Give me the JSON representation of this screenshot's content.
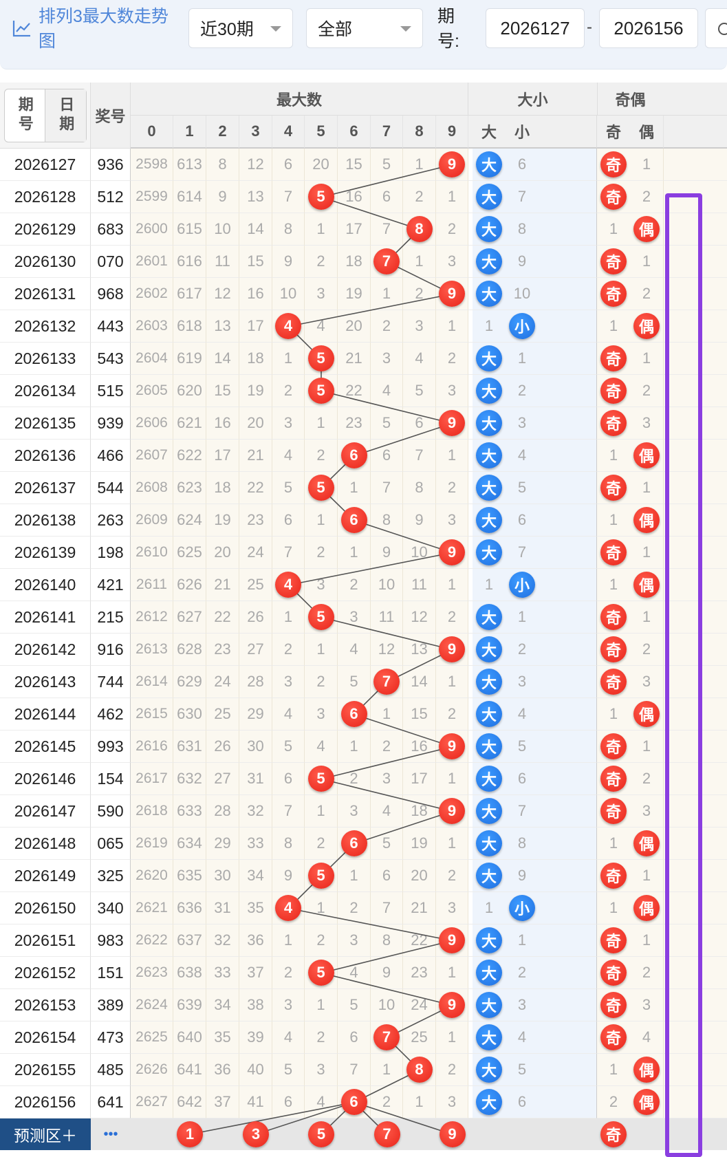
{
  "header": {
    "title": "排列3最大数走势图",
    "range_select": "近30期",
    "type_select": "全部",
    "period_label": "期号:",
    "period_from": "2026127",
    "period_to": "2026156",
    "dash": "-"
  },
  "table": {
    "col_period_label": "期号",
    "col_date_label": "日期",
    "col_award_label": "奖号",
    "group_max": "最大数",
    "group_size": "大小",
    "group_parity": "奇偶",
    "digit_headers": [
      "0",
      "1",
      "2",
      "3",
      "4",
      "5",
      "6",
      "7",
      "8",
      "9"
    ],
    "size_headers": [
      "大",
      "小"
    ],
    "parity_headers": [
      "奇",
      "偶"
    ],
    "rows": [
      {
        "p": "2026127",
        "a": "936",
        "d": [
          "2598",
          "613",
          "8",
          "12",
          "6",
          "20",
          "15",
          "5",
          "1",
          "9"
        ],
        "hit": 9,
        "s": [
          "大",
          "6"
        ],
        "sh": 0,
        "o": [
          "奇",
          "1"
        ],
        "oh": 0
      },
      {
        "p": "2026128",
        "a": "512",
        "d": [
          "2599",
          "614",
          "9",
          "13",
          "7",
          "5",
          "16",
          "6",
          "2",
          "1"
        ],
        "hit": 5,
        "s": [
          "大",
          "7"
        ],
        "sh": 0,
        "o": [
          "奇",
          "2"
        ],
        "oh": 0
      },
      {
        "p": "2026129",
        "a": "683",
        "d": [
          "2600",
          "615",
          "10",
          "14",
          "8",
          "1",
          "17",
          "7",
          "8",
          "2"
        ],
        "hit": 8,
        "s": [
          "大",
          "8"
        ],
        "sh": 0,
        "o": [
          "1",
          "偶"
        ],
        "oh": 1
      },
      {
        "p": "2026130",
        "a": "070",
        "d": [
          "2601",
          "616",
          "11",
          "15",
          "9",
          "2",
          "18",
          "7",
          "1",
          "3"
        ],
        "hit": 7,
        "s": [
          "大",
          "9"
        ],
        "sh": 0,
        "o": [
          "奇",
          "1"
        ],
        "oh": 0
      },
      {
        "p": "2026131",
        "a": "968",
        "d": [
          "2602",
          "617",
          "12",
          "16",
          "10",
          "3",
          "19",
          "1",
          "2",
          "9"
        ],
        "hit": 9,
        "s": [
          "大",
          "10"
        ],
        "sh": 0,
        "o": [
          "奇",
          "2"
        ],
        "oh": 0
      },
      {
        "p": "2026132",
        "a": "443",
        "d": [
          "2603",
          "618",
          "13",
          "17",
          "4",
          "4",
          "20",
          "2",
          "3",
          "1"
        ],
        "hit": 4,
        "s": [
          "1",
          "小"
        ],
        "sh": 1,
        "o": [
          "1",
          "偶"
        ],
        "oh": 1
      },
      {
        "p": "2026133",
        "a": "543",
        "d": [
          "2604",
          "619",
          "14",
          "18",
          "1",
          "5",
          "21",
          "3",
          "4",
          "2"
        ],
        "hit": 5,
        "s": [
          "大",
          "1"
        ],
        "sh": 0,
        "o": [
          "奇",
          "1"
        ],
        "oh": 0
      },
      {
        "p": "2026134",
        "a": "515",
        "d": [
          "2605",
          "620",
          "15",
          "19",
          "2",
          "5",
          "22",
          "4",
          "5",
          "3"
        ],
        "hit": 5,
        "s": [
          "大",
          "2"
        ],
        "sh": 0,
        "o": [
          "奇",
          "2"
        ],
        "oh": 0
      },
      {
        "p": "2026135",
        "a": "939",
        "d": [
          "2606",
          "621",
          "16",
          "20",
          "3",
          "1",
          "23",
          "5",
          "6",
          "9"
        ],
        "hit": 9,
        "s": [
          "大",
          "3"
        ],
        "sh": 0,
        "o": [
          "奇",
          "3"
        ],
        "oh": 0
      },
      {
        "p": "2026136",
        "a": "466",
        "d": [
          "2607",
          "622",
          "17",
          "21",
          "4",
          "2",
          "6",
          "6",
          "7",
          "1"
        ],
        "hit": 6,
        "s": [
          "大",
          "4"
        ],
        "sh": 0,
        "o": [
          "1",
          "偶"
        ],
        "oh": 1
      },
      {
        "p": "2026137",
        "a": "544",
        "d": [
          "2608",
          "623",
          "18",
          "22",
          "5",
          "5",
          "1",
          "7",
          "8",
          "2"
        ],
        "hit": 5,
        "s": [
          "大",
          "5"
        ],
        "sh": 0,
        "o": [
          "奇",
          "1"
        ],
        "oh": 0
      },
      {
        "p": "2026138",
        "a": "263",
        "d": [
          "2609",
          "624",
          "19",
          "23",
          "6",
          "1",
          "6",
          "8",
          "9",
          "3"
        ],
        "hit": 6,
        "s": [
          "大",
          "6"
        ],
        "sh": 0,
        "o": [
          "1",
          "偶"
        ],
        "oh": 1
      },
      {
        "p": "2026139",
        "a": "198",
        "d": [
          "2610",
          "625",
          "20",
          "24",
          "7",
          "2",
          "1",
          "9",
          "10",
          "9"
        ],
        "hit": 9,
        "s": [
          "大",
          "7"
        ],
        "sh": 0,
        "o": [
          "奇",
          "1"
        ],
        "oh": 0
      },
      {
        "p": "2026140",
        "a": "421",
        "d": [
          "2611",
          "626",
          "21",
          "25",
          "4",
          "3",
          "2",
          "10",
          "11",
          "1"
        ],
        "hit": 4,
        "s": [
          "1",
          "小"
        ],
        "sh": 1,
        "o": [
          "1",
          "偶"
        ],
        "oh": 1
      },
      {
        "p": "2026141",
        "a": "215",
        "d": [
          "2612",
          "627",
          "22",
          "26",
          "1",
          "5",
          "3",
          "11",
          "12",
          "2"
        ],
        "hit": 5,
        "s": [
          "大",
          "1"
        ],
        "sh": 0,
        "o": [
          "奇",
          "1"
        ],
        "oh": 0
      },
      {
        "p": "2026142",
        "a": "916",
        "d": [
          "2613",
          "628",
          "23",
          "27",
          "2",
          "1",
          "4",
          "12",
          "13",
          "9"
        ],
        "hit": 9,
        "s": [
          "大",
          "2"
        ],
        "sh": 0,
        "o": [
          "奇",
          "2"
        ],
        "oh": 0
      },
      {
        "p": "2026143",
        "a": "744",
        "d": [
          "2614",
          "629",
          "24",
          "28",
          "3",
          "2",
          "5",
          "7",
          "14",
          "1"
        ],
        "hit": 7,
        "s": [
          "大",
          "3"
        ],
        "sh": 0,
        "o": [
          "奇",
          "3"
        ],
        "oh": 0
      },
      {
        "p": "2026144",
        "a": "462",
        "d": [
          "2615",
          "630",
          "25",
          "29",
          "4",
          "3",
          "6",
          "1",
          "15",
          "2"
        ],
        "hit": 6,
        "s": [
          "大",
          "4"
        ],
        "sh": 0,
        "o": [
          "1",
          "偶"
        ],
        "oh": 1
      },
      {
        "p": "2026145",
        "a": "993",
        "d": [
          "2616",
          "631",
          "26",
          "30",
          "5",
          "4",
          "1",
          "2",
          "16",
          "9"
        ],
        "hit": 9,
        "s": [
          "大",
          "5"
        ],
        "sh": 0,
        "o": [
          "奇",
          "1"
        ],
        "oh": 0
      },
      {
        "p": "2026146",
        "a": "154",
        "d": [
          "2617",
          "632",
          "27",
          "31",
          "6",
          "5",
          "2",
          "3",
          "17",
          "1"
        ],
        "hit": 5,
        "s": [
          "大",
          "6"
        ],
        "sh": 0,
        "o": [
          "奇",
          "2"
        ],
        "oh": 0
      },
      {
        "p": "2026147",
        "a": "590",
        "d": [
          "2618",
          "633",
          "28",
          "32",
          "7",
          "1",
          "3",
          "4",
          "18",
          "9"
        ],
        "hit": 9,
        "s": [
          "大",
          "7"
        ],
        "sh": 0,
        "o": [
          "奇",
          "3"
        ],
        "oh": 0
      },
      {
        "p": "2026148",
        "a": "065",
        "d": [
          "2619",
          "634",
          "29",
          "33",
          "8",
          "2",
          "6",
          "5",
          "19",
          "1"
        ],
        "hit": 6,
        "s": [
          "大",
          "8"
        ],
        "sh": 0,
        "o": [
          "1",
          "偶"
        ],
        "oh": 1
      },
      {
        "p": "2026149",
        "a": "325",
        "d": [
          "2620",
          "635",
          "30",
          "34",
          "9",
          "5",
          "1",
          "6",
          "20",
          "2"
        ],
        "hit": 5,
        "s": [
          "大",
          "9"
        ],
        "sh": 0,
        "o": [
          "奇",
          "1"
        ],
        "oh": 0
      },
      {
        "p": "2026150",
        "a": "340",
        "d": [
          "2621",
          "636",
          "31",
          "35",
          "4",
          "1",
          "2",
          "7",
          "21",
          "3"
        ],
        "hit": 4,
        "s": [
          "1",
          "小"
        ],
        "sh": 1,
        "o": [
          "1",
          "偶"
        ],
        "oh": 1
      },
      {
        "p": "2026151",
        "a": "983",
        "d": [
          "2622",
          "637",
          "32",
          "36",
          "1",
          "2",
          "3",
          "8",
          "22",
          "9"
        ],
        "hit": 9,
        "s": [
          "大",
          "1"
        ],
        "sh": 0,
        "o": [
          "奇",
          "1"
        ],
        "oh": 0
      },
      {
        "p": "2026152",
        "a": "151",
        "d": [
          "2623",
          "638",
          "33",
          "37",
          "2",
          "5",
          "4",
          "9",
          "23",
          "1"
        ],
        "hit": 5,
        "s": [
          "大",
          "2"
        ],
        "sh": 0,
        "o": [
          "奇",
          "2"
        ],
        "oh": 0
      },
      {
        "p": "2026153",
        "a": "389",
        "d": [
          "2624",
          "639",
          "34",
          "38",
          "3",
          "1",
          "5",
          "10",
          "24",
          "9"
        ],
        "hit": 9,
        "s": [
          "大",
          "3"
        ],
        "sh": 0,
        "o": [
          "奇",
          "3"
        ],
        "oh": 0
      },
      {
        "p": "2026154",
        "a": "473",
        "d": [
          "2625",
          "640",
          "35",
          "39",
          "4",
          "2",
          "6",
          "7",
          "25",
          "1"
        ],
        "hit": 7,
        "s": [
          "大",
          "4"
        ],
        "sh": 0,
        "o": [
          "奇",
          "4"
        ],
        "oh": 0
      },
      {
        "p": "2026155",
        "a": "485",
        "d": [
          "2626",
          "641",
          "36",
          "40",
          "5",
          "3",
          "7",
          "1",
          "8",
          "2"
        ],
        "hit": 8,
        "s": [
          "大",
          "5"
        ],
        "sh": 0,
        "o": [
          "1",
          "偶"
        ],
        "oh": 1
      },
      {
        "p": "2026156",
        "a": "641",
        "d": [
          "2627",
          "642",
          "37",
          "41",
          "6",
          "4",
          "6",
          "2",
          "1",
          "3"
        ],
        "hit": 6,
        "s": [
          "大",
          "6"
        ],
        "sh": 0,
        "o": [
          "2",
          "偶"
        ],
        "oh": 1
      }
    ],
    "predict": {
      "label": "预测区＋",
      "more": "•••",
      "balls": [
        "1",
        "3",
        "5",
        "7",
        "9"
      ],
      "parity": "奇"
    }
  },
  "colors": {
    "red": "#e8241a",
    "blue": "#1f6fe0",
    "highlight": "#8a3ee0",
    "title": "#4f86d9"
  }
}
